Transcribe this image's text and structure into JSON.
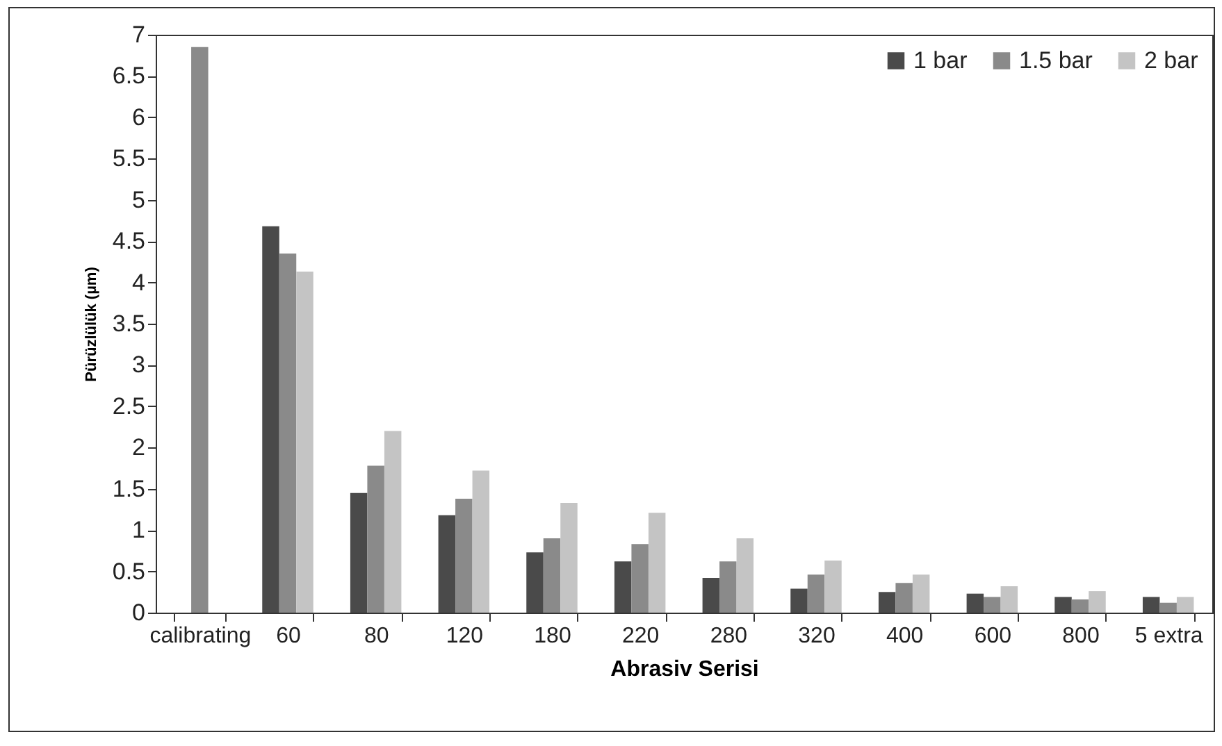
{
  "chart_data": {
    "type": "bar",
    "xlabel": "Abrasiv Serisi",
    "ylabel": "Pürüzlülük (µm)",
    "categories": [
      "calibrating",
      "60",
      "80",
      "120",
      "180",
      "220",
      "280",
      "320",
      "400",
      "600",
      "800",
      "5 extra"
    ],
    "series": [
      {
        "name": "1 bar",
        "color": "#4a4a4a",
        "values": [
          null,
          4.68,
          1.45,
          1.18,
          0.73,
          0.62,
          0.42,
          0.29,
          0.25,
          0.23,
          0.19,
          0.19
        ]
      },
      {
        "name": "1.5 bar",
        "color": "#8a8a8a",
        "values": [
          6.85,
          4.35,
          1.78,
          1.38,
          0.9,
          0.83,
          0.62,
          0.46,
          0.36,
          0.19,
          0.16,
          0.12
        ]
      },
      {
        "name": "2 bar",
        "color": "#c4c4c4",
        "values": [
          null,
          4.13,
          2.2,
          1.72,
          1.33,
          1.21,
          0.9,
          0.63,
          0.46,
          0.32,
          0.26,
          0.19
        ]
      }
    ],
    "ylim": [
      0,
      7
    ],
    "yticks": [
      0,
      0.5,
      1,
      1.5,
      2,
      2.5,
      3,
      3.5,
      4,
      4.5,
      5,
      5.5,
      6,
      6.5,
      7
    ],
    "grid": false,
    "legend": "top right"
  }
}
